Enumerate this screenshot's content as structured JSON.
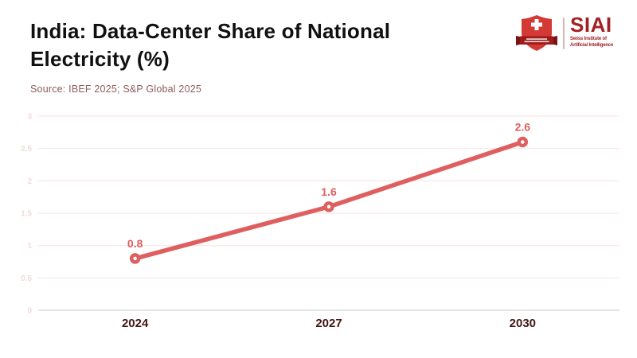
{
  "header": {
    "title_lines": [
      "India: Data-Center Share of National",
      "Electricity (%)"
    ],
    "source": "Source: IBEF 2025; S&P Global 2025"
  },
  "logo": {
    "wordmark": "SIAI",
    "subtitle_lines": [
      "Swiss Institute of",
      "Artificial Intelligence"
    ]
  },
  "colors": {
    "accent_line": "#df5f5f",
    "grid_pink": "#f9e6e6",
    "zero_line_gray": "#d2d2d2",
    "ytick_pink": "#f3dada",
    "xtick_maroon": "#441515",
    "title_black": "#101010",
    "source_mauve": "#8d5c5c",
    "brand_dark_red": "#a32024",
    "shield_red": "#d43a35",
    "banner_dark_red": "#9e1b1b"
  },
  "chart_data": {
    "type": "line",
    "title": "India: Data-Center Share of National Electricity (%)",
    "source": "Source: IBEF 2025; S&P Global 2025",
    "categories": [
      "2024",
      "2027",
      "2030"
    ],
    "values": [
      0.8,
      1.6,
      2.6
    ],
    "data_labels": [
      "0.8",
      "1.6",
      "2.6"
    ],
    "xlabel": "",
    "ylabel": "",
    "ylim": [
      0,
      3
    ],
    "yticks": [
      0,
      0.5,
      1,
      1.5,
      2,
      2.5,
      3
    ],
    "grid": true,
    "legend": false,
    "marker": "open-circle"
  }
}
